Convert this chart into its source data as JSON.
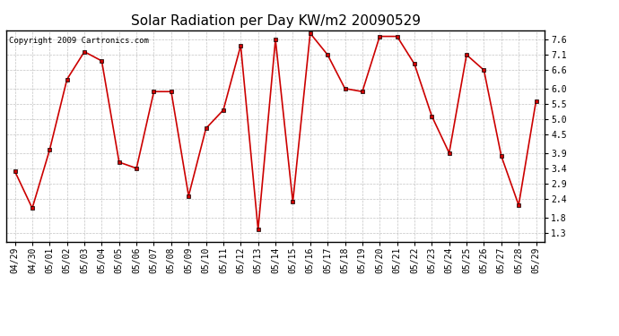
{
  "title": "Solar Radiation per Day KW/m2 20090529",
  "copyright": "Copyright 2009 Cartronics.com",
  "labels": [
    "04/29",
    "04/30",
    "05/01",
    "05/02",
    "05/03",
    "05/04",
    "05/05",
    "05/06",
    "05/07",
    "05/08",
    "05/09",
    "05/10",
    "05/11",
    "05/12",
    "05/13",
    "05/14",
    "05/15",
    "05/16",
    "05/17",
    "05/18",
    "05/19",
    "05/20",
    "05/21",
    "05/22",
    "05/23",
    "05/24",
    "05/25",
    "05/26",
    "05/27",
    "05/28",
    "05/29"
  ],
  "values": [
    3.3,
    2.1,
    4.0,
    6.3,
    7.2,
    6.9,
    3.6,
    3.4,
    5.9,
    5.9,
    2.5,
    4.7,
    5.3,
    7.4,
    1.4,
    7.6,
    2.3,
    7.8,
    7.1,
    6.0,
    5.9,
    7.7,
    7.7,
    6.8,
    5.1,
    3.9,
    7.1,
    6.6,
    3.8,
    2.2,
    5.6
  ],
  "line_color": "#cc0000",
  "marker": "s",
  "marker_size": 2.5,
  "bg_color": "#ffffff",
  "plot_bg_color": "#ffffff",
  "grid_color": "#aaaaaa",
  "yticks": [
    1.3,
    1.8,
    2.4,
    2.9,
    3.4,
    3.9,
    4.5,
    5.0,
    5.5,
    6.0,
    6.6,
    7.1,
    7.6
  ],
  "ylim": [
    1.0,
    7.9
  ],
  "title_fontsize": 11,
  "tick_fontsize": 7,
  "copyright_fontsize": 6.5
}
